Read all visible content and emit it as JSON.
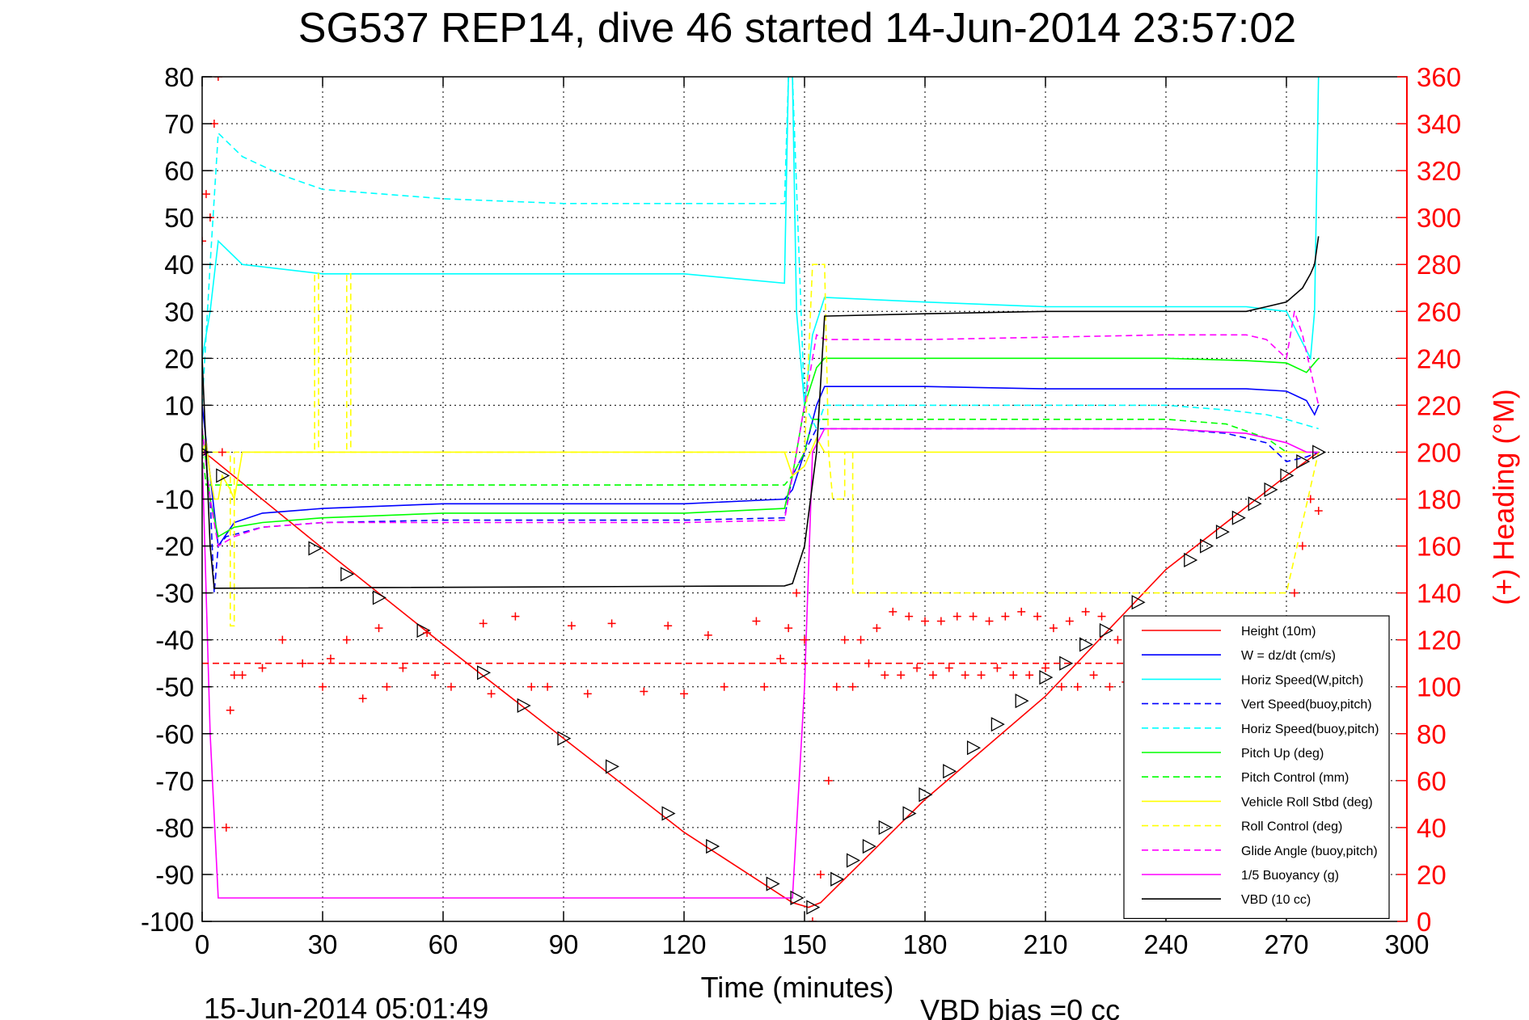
{
  "chart_data": {
    "type": "line",
    "title": "SG537 REP14, dive 46 started 14-Jun-2014 23:57:02",
    "xlabel": "Time (minutes)",
    "ylabel": "",
    "y2label": "(+) Heading (°M)",
    "xlim": [
      0,
      300
    ],
    "ylim": [
      -100,
      80
    ],
    "y2lim": [
      0,
      360
    ],
    "xticks": [
      "0",
      "30",
      "60",
      "90",
      "120",
      "150",
      "180",
      "210",
      "240",
      "270",
      "300"
    ],
    "yticks": [
      "80",
      "70",
      "60",
      "50",
      "40",
      "30",
      "20",
      "10",
      "0",
      "-10",
      "-20",
      "-30",
      "-40",
      "-50",
      "-60",
      "-70",
      "-80",
      "-90",
      "-100"
    ],
    "y2ticks": [
      "360",
      "340",
      "320",
      "300",
      "280",
      "260",
      "240",
      "220",
      "200",
      "180",
      "160",
      "140",
      "120",
      "100",
      "80",
      "60",
      "40",
      "20",
      "0"
    ],
    "grid": true,
    "legend_position": "bottom-right",
    "footer_date": "15-Jun-2014 05:01:49",
    "footer_vbd": "VBD bias =0 cc",
    "colors": {
      "red": "#ff0000",
      "blue": "#0000ff",
      "cyan": "#00ffff",
      "green": "#00ff00",
      "yellow": "#ffff00",
      "magenta": "#ff00ff",
      "black": "#000000"
    },
    "series": [
      {
        "name": "Height (10m)",
        "color": "#ff0000",
        "style": "solid",
        "x": [
          0,
          2,
          30,
          60,
          90,
          120,
          147,
          151,
          154,
          180,
          210,
          240,
          270,
          278
        ],
        "y": [
          0,
          -1,
          -20.5,
          -41,
          -61,
          -81,
          -96,
          -97,
          -96,
          -74,
          -52,
          -25,
          -5,
          0
        ]
      },
      {
        "name": "W = dz/dt (cm/s)",
        "color": "#0000ff",
        "style": "solid",
        "x": [
          0,
          2,
          4,
          8,
          15,
          30,
          60,
          90,
          120,
          145,
          147,
          150,
          153,
          155,
          180,
          210,
          240,
          260,
          270,
          275,
          277,
          278
        ],
        "y": [
          10,
          -5,
          -20,
          -15,
          -13,
          -12,
          -11,
          -11,
          -11,
          -10,
          -8,
          0,
          10,
          14,
          14,
          13.5,
          13.5,
          13.5,
          13,
          11,
          8,
          10
        ]
      },
      {
        "name": "Horiz Speed(W,pitch)",
        "color": "#00ffff",
        "style": "solid",
        "x": [
          0,
          2,
          4,
          10,
          30,
          60,
          90,
          120,
          145,
          146,
          147,
          148,
          150,
          152,
          155,
          180,
          210,
          240,
          260,
          270,
          276,
          277,
          278
        ],
        "y": [
          20,
          30,
          45,
          40,
          38,
          38,
          38,
          38,
          36,
          80,
          80,
          30,
          10,
          25,
          33,
          32,
          31,
          31,
          31,
          30,
          20,
          30,
          80
        ]
      },
      {
        "name": "Vert Speed(buoy,pitch)",
        "color": "#0000ff",
        "style": "dashed",
        "x": [
          0,
          2,
          3,
          4,
          6,
          15,
          30,
          60,
          90,
          120,
          145,
          147,
          150,
          153,
          155,
          180,
          210,
          240,
          255,
          265,
          270,
          275,
          278
        ],
        "y": [
          5,
          -10,
          -30,
          -20,
          -18,
          -16,
          -15,
          -14.5,
          -14.5,
          -14.5,
          -14,
          -5,
          0,
          5,
          5,
          5,
          5,
          5,
          4,
          2,
          -2,
          -1,
          0
        ]
      },
      {
        "name": "Horiz Speed(buoy,pitch)",
        "color": "#00ffff",
        "style": "dashed",
        "x": [
          0,
          2,
          4,
          10,
          20,
          30,
          45,
          60,
          90,
          120,
          145,
          146,
          147,
          150,
          153,
          155,
          180,
          210,
          240,
          255,
          265,
          270,
          278
        ],
        "y": [
          10,
          40,
          68,
          63,
          59,
          56,
          55,
          54,
          53,
          53,
          53,
          80,
          80,
          10,
          5,
          10,
          10,
          10,
          10,
          9,
          8,
          7,
          5
        ]
      },
      {
        "name": "Pitch Up (deg)",
        "color": "#00ff00",
        "style": "solid",
        "x": [
          0,
          2,
          4,
          8,
          15,
          30,
          60,
          90,
          120,
          145,
          147,
          150,
          153,
          155,
          180,
          210,
          240,
          260,
          270,
          275,
          278
        ],
        "y": [
          5,
          -10,
          -18,
          -16,
          -15,
          -14,
          -13,
          -13,
          -13,
          -12,
          -5,
          10,
          18,
          20,
          20,
          20,
          20,
          19.5,
          19,
          17,
          20
        ]
      },
      {
        "name": "Pitch Control (mm)",
        "color": "#00ff00",
        "style": "dashed",
        "x": [
          0,
          1,
          2,
          3,
          6,
          7,
          145,
          147,
          150,
          152,
          155,
          180,
          210,
          240,
          255,
          265,
          270,
          275,
          278
        ],
        "y": [
          0,
          -7,
          -7,
          -7,
          -7,
          -7,
          -7,
          -5,
          0,
          7,
          7,
          7,
          7,
          7,
          6,
          3,
          0,
          0,
          0
        ]
      },
      {
        "name": "Vehicle Roll Stbd (deg)",
        "color": "#ffff00",
        "style": "solid",
        "x": [
          0,
          1,
          2,
          3,
          4,
          5,
          7,
          8,
          10,
          30,
          60,
          90,
          120,
          145,
          147,
          150,
          153,
          155,
          180,
          210,
          240,
          270,
          278
        ],
        "y": [
          0,
          2,
          -5,
          -10,
          -10,
          -5,
          -8,
          -10,
          0,
          0,
          0,
          0,
          0,
          0,
          -5,
          -3,
          3,
          0,
          0,
          0,
          0,
          0,
          0
        ]
      },
      {
        "name": "Roll Control (deg)",
        "color": "#ffff00",
        "style": "dashed",
        "x": [
          0,
          7,
          7,
          8,
          8,
          28,
          28,
          29,
          29,
          36,
          36,
          37,
          37,
          145,
          150,
          152,
          155,
          156,
          157,
          160,
          160,
          162,
          162,
          240,
          270,
          278
        ],
        "y": [
          0,
          0,
          -37,
          -37,
          0,
          0,
          38,
          38,
          0,
          0,
          38,
          38,
          0,
          0,
          0,
          40,
          40,
          0,
          -10,
          -10,
          0,
          0,
          -30,
          -30,
          -30,
          0
        ]
      },
      {
        "name": "Glide Angle (buoy,pitch)",
        "color": "#ff00ff",
        "style": "dashed",
        "x": [
          0,
          2,
          4,
          8,
          15,
          30,
          60,
          90,
          120,
          145,
          147,
          150,
          153,
          155,
          180,
          210,
          240,
          260,
          265,
          270,
          272,
          274,
          278
        ],
        "y": [
          5,
          -10,
          -20,
          -18,
          -16,
          -15,
          -15,
          -15,
          -15,
          -14.5,
          -5,
          10,
          25,
          24,
          24,
          24.5,
          25,
          25,
          24,
          20,
          30,
          25,
          10
        ]
      },
      {
        "name": "1/5 Buoyancy (g)",
        "color": "#ff00ff",
        "style": "solid",
        "x": [
          0,
          2,
          4,
          145,
          147,
          150,
          152,
          155,
          180,
          210,
          240,
          260,
          270,
          275,
          278
        ],
        "y": [
          0,
          -60,
          -95,
          -95,
          -95,
          -50,
          0,
          5,
          5,
          5,
          5,
          4,
          2,
          0,
          0
        ]
      },
      {
        "name": "VBD (10 cc)",
        "color": "#000000",
        "style": "solid",
        "x": [
          0,
          1,
          2,
          3,
          145,
          147,
          150,
          153,
          155,
          180,
          210,
          240,
          260,
          265,
          270,
          274,
          276,
          277,
          278
        ],
        "y": [
          20,
          0,
          -20,
          -29,
          -28.5,
          -28,
          -20,
          0,
          29,
          29.5,
          30,
          30,
          30,
          31,
          32,
          35,
          38,
          40,
          46
        ]
      },
      {
        "name": "",
        "color": "#000000",
        "style": "markers-triangle-right",
        "x": [
          0,
          5,
          28,
          36,
          44,
          55,
          70,
          80,
          90,
          102,
          116,
          127,
          142,
          148,
          152,
          158,
          162,
          166,
          170,
          176,
          180,
          186,
          192,
          198,
          204,
          210,
          215,
          220,
          225,
          233,
          246,
          250,
          254,
          258,
          262,
          266,
          270,
          274,
          278
        ],
        "y": [
          0,
          -5,
          -20.5,
          -26,
          -31,
          -38,
          -47,
          -54,
          -61,
          -67,
          -77,
          -84,
          -92,
          -95,
          -97,
          -91,
          -87,
          -84,
          -80,
          -77,
          -73,
          -68,
          -63,
          -58,
          -53,
          -48,
          -45,
          -41,
          -38,
          -32,
          -23,
          -20,
          -17,
          -14,
          -11,
          -8,
          -5,
          -2,
          0
        ]
      },
      {
        "name": "Heading",
        "axis": "right",
        "color": "#ff0000",
        "style": "markers-plus",
        "x": [
          0,
          1,
          2,
          3,
          4,
          5,
          6,
          7,
          8,
          10,
          15,
          20,
          25,
          30,
          32,
          36,
          40,
          44,
          46,
          50,
          56,
          58,
          62,
          70,
          72,
          78,
          82,
          86,
          92,
          96,
          102,
          110,
          116,
          120,
          126,
          130,
          138,
          140,
          144,
          146,
          148,
          150,
          152,
          154,
          156,
          158,
          160,
          162,
          164,
          166,
          168,
          170,
          172,
          174,
          176,
          178,
          180,
          182,
          184,
          186,
          188,
          190,
          192,
          194,
          196,
          198,
          200,
          202,
          204,
          206,
          208,
          210,
          212,
          214,
          216,
          218,
          220,
          222,
          224,
          226,
          228,
          230,
          232,
          272,
          274,
          276,
          278
        ],
        "y": [
          290,
          310,
          300,
          340,
          360,
          200,
          40,
          90,
          105,
          105,
          108,
          120,
          110,
          100,
          112,
          120,
          95,
          125,
          100,
          108,
          123,
          105,
          100,
          127,
          97,
          130,
          100,
          100,
          126,
          97,
          127,
          98,
          126,
          97,
          122,
          100,
          128,
          100,
          112,
          125,
          140,
          120,
          0,
          20,
          60,
          100,
          120,
          100,
          120,
          110,
          125,
          105,
          132,
          105,
          130,
          108,
          128,
          105,
          128,
          108,
          130,
          105,
          130,
          105,
          128,
          108,
          130,
          105,
          132,
          105,
          130,
          108,
          125,
          100,
          128,
          100,
          132,
          105,
          130,
          100,
          120,
          102,
          100,
          140,
          160,
          180,
          175
        ]
      },
      {
        "name": "",
        "axis": "right",
        "color": "#ff0000",
        "style": "dashed",
        "x": [
          0,
          278
        ],
        "y": [
          110,
          110
        ]
      }
    ]
  }
}
